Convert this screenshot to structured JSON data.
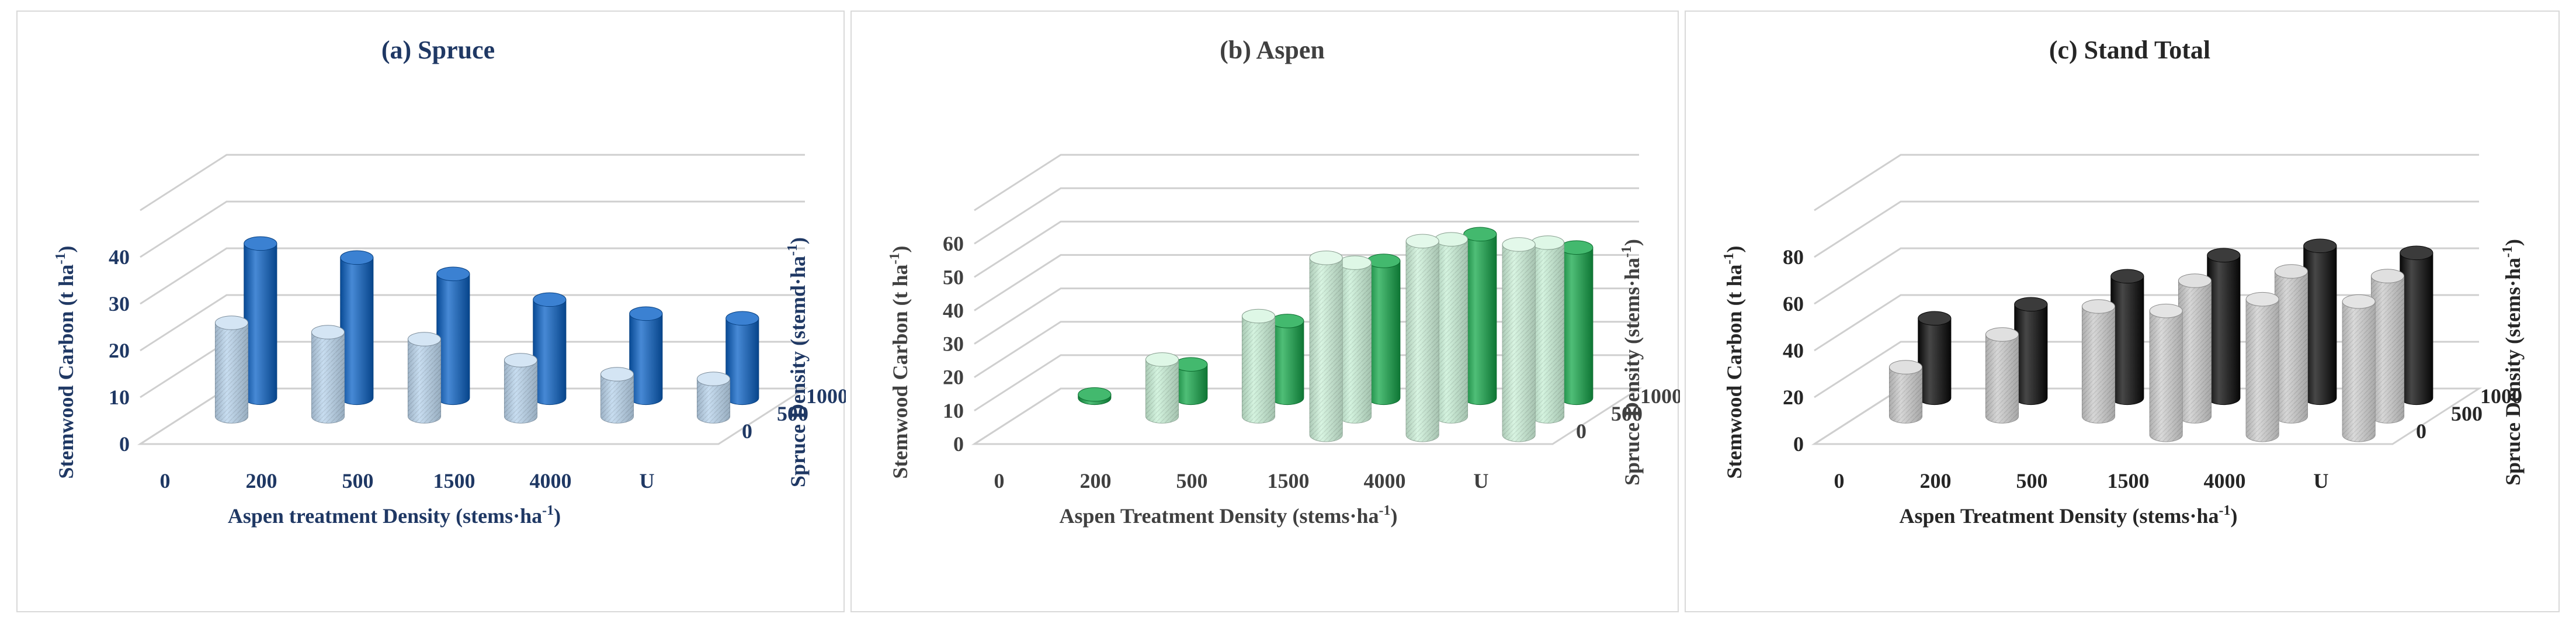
{
  "chart_data": [
    {
      "type": "bar",
      "title": "(a) Spruce",
      "xlabel": "Aspen treatment Density (stems·ha",
      "xlabel_sup": "-1",
      "xlabel_end": ")",
      "ylabel": "Stemwood Carbon (t ha",
      "ylabel_sup": "-1",
      "ylabel_end": ")",
      "zlabel": "Spruce Density (stemd·ha",
      "zlabel_sup": "-1",
      "zlabel_end": ")",
      "categories": [
        "0",
        "200",
        "500",
        "1500",
        "4000",
        "U"
      ],
      "series": [
        {
          "name": "0",
          "values": [
            0,
            0,
            0,
            0,
            0,
            0
          ]
        },
        {
          "name": "500",
          "values": [
            20,
            18,
            16.5,
            12,
            9,
            8
          ]
        },
        {
          "name": "1000",
          "values": [
            33,
            30,
            26.5,
            21,
            18,
            17
          ]
        }
      ],
      "yticks": [
        "0",
        "10",
        "20",
        "30",
        "40"
      ],
      "ylim": [
        0,
        50
      ],
      "grid": true,
      "colors": {
        "text": "#1f3864",
        "front": "#bdd7ee",
        "back": "#0a62c7"
      }
    },
    {
      "type": "bar",
      "title": "(b) Aspen",
      "xlabel": "Aspen Treatment Density (stems·ha",
      "xlabel_sup": "-1",
      "xlabel_end": ")",
      "ylabel": "Stemwood Carbon (t ha",
      "ylabel_sup": "-1",
      "ylabel_end": ")",
      "zlabel": "Spruce Density (stems·ha",
      "zlabel_sup": "-1",
      "zlabel_end": ")",
      "categories": [
        "0",
        "200",
        "500",
        "1500",
        "4000",
        "U"
      ],
      "series": [
        {
          "name": "0",
          "values": [
            0,
            0,
            0,
            53,
            58,
            57
          ]
        },
        {
          "name": "500",
          "values": [
            0,
            17,
            30,
            46,
            53,
            52
          ]
        },
        {
          "name": "1000",
          "values": [
            1,
            10,
            23,
            41,
            49,
            45
          ]
        }
      ],
      "yticks": [
        "0",
        "10",
        "20",
        "30",
        "40",
        "50",
        "60"
      ],
      "ylim": [
        0,
        70
      ],
      "grid": true,
      "colors": {
        "text": "#404040",
        "front": "#ccf2d9",
        "back": "#14a84a"
      }
    },
    {
      "type": "bar",
      "title": "(c) Stand Total",
      "xlabel": "Aspen Treatment Density (stems·ha",
      "xlabel_sup": "-1",
      "xlabel_end": ")",
      "ylabel": "Stemwood Carbon (t ha",
      "ylabel_sup": "-1",
      "ylabel_end": ")",
      "zlabel": "Spruce Density (stems·ha",
      "zlabel_sup": "-1",
      "zlabel_end": ")",
      "categories": [
        "0",
        "200",
        "500",
        "1500",
        "4000",
        "U"
      ],
      "series": [
        {
          "name": "0",
          "values": [
            0,
            0,
            0,
            53,
            58,
            57
          ]
        },
        {
          "name": "500",
          "values": [
            21,
            35,
            47,
            58,
            62,
            60
          ]
        },
        {
          "name": "1000",
          "values": [
            34,
            40,
            52,
            61,
            65,
            62
          ]
        }
      ],
      "yticks": [
        "0",
        "20",
        "40",
        "60",
        "80"
      ],
      "ylim": [
        0,
        100
      ],
      "grid": true,
      "colors": {
        "text": "#262626",
        "front": "#cfcfcf",
        "back": "#0a0a0a"
      }
    }
  ]
}
